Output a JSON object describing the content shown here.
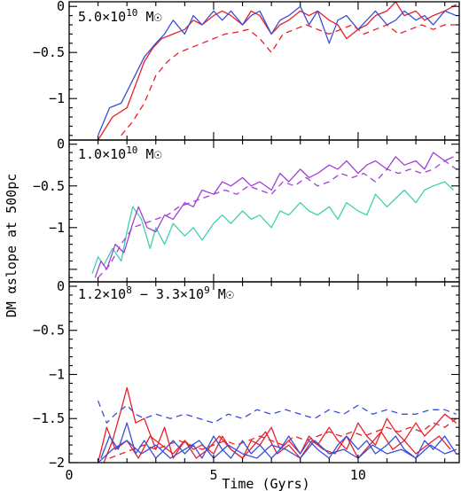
{
  "chart_data": {
    "type": "line",
    "xlabel": "Time (Gyrs)",
    "ylabel": "DM αslope at 500pc",
    "xlim": [
      0,
      13.5
    ],
    "x_ticks": [
      0,
      5,
      10
    ],
    "colors": {
      "red": "#e8202a",
      "blue": "#3a4fd8",
      "purple": "#a040d8",
      "teal": "#40d0b0"
    },
    "panels": [
      {
        "label_text": "5.0×10",
        "label_exp": "10",
        "label_unit": " M☉",
        "ylim": [
          -1.45,
          0.05
        ],
        "y_ticks": [
          0,
          -0.5,
          -1
        ],
        "y_tick_labels": [
          "0",
          "−0.5",
          "−1"
        ],
        "series": [
          {
            "color": "red",
            "dash": false,
            "x": [
              1.0,
              1.5,
              2.0,
              2.3,
              2.6,
              2.9,
              3.2,
              3.6,
              4.0,
              4.3,
              4.6,
              5.0,
              5.3,
              5.6,
              6.0,
              6.3,
              6.6,
              7.0,
              7.3,
              7.6,
              8.0,
              8.3,
              8.6,
              9.0,
              9.3,
              9.6,
              10.0,
              10.3,
              10.6,
              11.0,
              11.3,
              11.6,
              12.0,
              12.3,
              12.6,
              13.0,
              13.4
            ],
            "y": [
              -1.45,
              -1.2,
              -1.1,
              -0.85,
              -0.6,
              -0.45,
              -0.35,
              -0.3,
              -0.25,
              -0.15,
              -0.2,
              -0.1,
              -0.05,
              -0.1,
              -0.2,
              -0.05,
              -0.1,
              -0.3,
              -0.2,
              -0.15,
              -0.05,
              -0.1,
              -0.05,
              -0.15,
              -0.2,
              -0.35,
              -0.25,
              -0.2,
              -0.1,
              -0.05,
              0.05,
              -0.1,
              -0.05,
              -0.15,
              -0.1,
              -0.05,
              0.02
            ]
          },
          {
            "color": "blue",
            "dash": false,
            "x": [
              1.0,
              1.4,
              1.8,
              2.2,
              2.6,
              3.0,
              3.3,
              3.6,
              4.0,
              4.3,
              4.6,
              5.0,
              5.3,
              5.6,
              6.0,
              6.3,
              6.6,
              7.0,
              7.3,
              7.6,
              8.0,
              8.3,
              8.6,
              9.0,
              9.3,
              9.6,
              10.0,
              10.3,
              10.6,
              11.0,
              11.3,
              11.6,
              12.0,
              12.3,
              12.6,
              13.0,
              13.4
            ],
            "y": [
              -1.4,
              -1.1,
              -1.05,
              -0.8,
              -0.55,
              -0.4,
              -0.3,
              -0.15,
              -0.3,
              -0.1,
              -0.2,
              -0.05,
              -0.15,
              -0.05,
              -0.2,
              -0.1,
              -0.05,
              -0.3,
              -0.15,
              -0.1,
              0.0,
              -0.2,
              -0.05,
              -0.4,
              -0.15,
              -0.1,
              -0.25,
              -0.15,
              -0.05,
              -0.2,
              -0.15,
              -0.05,
              -0.15,
              -0.1,
              -0.2,
              -0.05,
              -0.1
            ]
          },
          {
            "color": "red",
            "dash": true,
            "x": [
              1.8,
              2.2,
              2.6,
              3.0,
              3.4,
              3.8,
              4.2,
              4.6,
              5.0,
              5.4,
              5.8,
              6.2,
              6.6,
              7.0,
              7.4,
              7.8,
              8.2,
              8.6,
              9.0,
              9.4,
              9.8,
              10.2,
              10.6,
              11.0,
              11.4,
              11.8,
              12.2,
              12.6,
              13.0,
              13.4
            ],
            "y": [
              -1.4,
              -1.25,
              -1.05,
              -0.75,
              -0.6,
              -0.5,
              -0.45,
              -0.4,
              -0.35,
              -0.3,
              -0.28,
              -0.25,
              -0.35,
              -0.5,
              -0.3,
              -0.25,
              -0.2,
              -0.25,
              -0.3,
              -0.25,
              -0.2,
              -0.3,
              -0.25,
              -0.2,
              -0.3,
              -0.25,
              -0.2,
              -0.25,
              -0.2,
              -0.2
            ]
          }
        ]
      },
      {
        "label_text": "1.0×10",
        "label_exp": "10",
        "label_unit": " M☉",
        "ylim": [
          -1.65,
          0.05
        ],
        "y_ticks": [
          0,
          -0.5,
          -1
        ],
        "y_tick_labels": [
          "0",
          "−0.5",
          "−1"
        ],
        "series": [
          {
            "color": "teal",
            "dash": false,
            "x": [
              0.8,
              1.0,
              1.2,
              1.5,
              1.8,
              2.0,
              2.2,
              2.5,
              2.8,
              3.0,
              3.3,
              3.6,
              4.0,
              4.3,
              4.6,
              5.0,
              5.3,
              5.6,
              6.0,
              6.3,
              6.6,
              7.0,
              7.3,
              7.6,
              8.0,
              8.3,
              8.6,
              9.0,
              9.3,
              9.6,
              10.0,
              10.3,
              10.6,
              11.0,
              11.3,
              11.6,
              12.0,
              12.3,
              12.6,
              13.0,
              13.3
            ],
            "y": [
              -1.55,
              -1.35,
              -1.45,
              -1.25,
              -1.4,
              -1.05,
              -0.75,
              -0.9,
              -1.25,
              -1.0,
              -1.2,
              -0.95,
              -1.1,
              -1.0,
              -1.15,
              -0.95,
              -0.85,
              -0.95,
              -0.8,
              -0.9,
              -0.85,
              -1.0,
              -0.8,
              -0.85,
              -0.7,
              -0.8,
              -0.85,
              -0.75,
              -0.9,
              -0.7,
              -0.8,
              -0.85,
              -0.6,
              -0.75,
              -0.65,
              -0.55,
              -0.7,
              -0.55,
              -0.5,
              -0.45,
              -0.55
            ]
          },
          {
            "color": "purple",
            "dash": false,
            "x": [
              0.9,
              1.1,
              1.3,
              1.6,
              1.9,
              2.2,
              2.4,
              2.7,
              3.0,
              3.3,
              3.6,
              4.0,
              4.3,
              4.6,
              5.0,
              5.3,
              5.6,
              6.0,
              6.3,
              6.6,
              7.0,
              7.3,
              7.6,
              8.0,
              8.3,
              8.6,
              9.0,
              9.3,
              9.6,
              10.0,
              10.3,
              10.6,
              11.0,
              11.3,
              11.6,
              12.0,
              12.3,
              12.6,
              13.0,
              13.3
            ],
            "y": [
              -1.6,
              -1.4,
              -1.5,
              -1.2,
              -1.3,
              -0.95,
              -0.75,
              -1.0,
              -1.05,
              -0.85,
              -0.9,
              -0.7,
              -0.75,
              -0.55,
              -0.6,
              -0.45,
              -0.5,
              -0.4,
              -0.5,
              -0.45,
              -0.55,
              -0.35,
              -0.45,
              -0.3,
              -0.4,
              -0.35,
              -0.25,
              -0.3,
              -0.2,
              -0.35,
              -0.25,
              -0.2,
              -0.3,
              -0.15,
              -0.25,
              -0.2,
              -0.3,
              -0.1,
              -0.2,
              -0.15
            ]
          },
          {
            "color": "purple",
            "dash": true,
            "x": [
              1.0,
              1.4,
              1.8,
              2.2,
              2.6,
              3.0,
              3.4,
              3.8,
              4.2,
              4.6,
              5.0,
              5.4,
              5.8,
              6.2,
              6.6,
              7.0,
              7.4,
              7.8,
              8.2,
              8.6,
              9.0,
              9.4,
              9.8,
              10.2,
              10.6,
              11.0,
              11.4,
              11.8,
              12.2,
              12.6,
              13.0,
              13.4
            ],
            "y": [
              -1.6,
              -1.45,
              -1.2,
              -1.0,
              -0.95,
              -0.9,
              -0.85,
              -0.75,
              -0.7,
              -0.65,
              -0.6,
              -0.55,
              -0.6,
              -0.5,
              -0.55,
              -0.6,
              -0.45,
              -0.5,
              -0.4,
              -0.5,
              -0.45,
              -0.35,
              -0.4,
              -0.35,
              -0.45,
              -0.3,
              -0.35,
              -0.3,
              -0.35,
              -0.3,
              -0.2,
              -0.3
            ]
          }
        ]
      },
      {
        "label_text": "1.2×10",
        "label_exp": "8",
        "label_mid": " − 3.3×10",
        "label_exp2": "9",
        "label_unit": " M☉",
        "ylim": [
          -2.0,
          0.05
        ],
        "y_ticks": [
          0,
          -0.5,
          -1,
          -1.5,
          -2
        ],
        "y_tick_labels": [
          "0",
          "−0.5",
          "−1",
          "−1.5",
          "−2"
        ],
        "series": [
          {
            "color": "red",
            "dash": false,
            "x": [
              1.2,
              1.5,
              1.8,
              2.0,
              2.3,
              2.6,
              3.0,
              3.3,
              3.6,
              4.0,
              4.3,
              4.6,
              5.0,
              5.3,
              5.6,
              6.0,
              6.3,
              6.6,
              7.0,
              7.3,
              7.6,
              8.0,
              8.3,
              8.6,
              9.0,
              9.3,
              9.6,
              10.0,
              10.3,
              10.6,
              11.0,
              11.3,
              11.6,
              12.0,
              12.3,
              12.6,
              13.0,
              13.4
            ],
            "y": [
              -2.0,
              -1.75,
              -1.4,
              -1.15,
              -1.55,
              -1.5,
              -1.85,
              -1.6,
              -1.95,
              -1.75,
              -1.85,
              -1.8,
              -1.9,
              -1.7,
              -1.85,
              -1.95,
              -1.75,
              -1.8,
              -1.6,
              -1.85,
              -1.75,
              -1.9,
              -1.7,
              -1.8,
              -1.6,
              -1.75,
              -1.85,
              -1.55,
              -1.7,
              -1.8,
              -1.5,
              -1.65,
              -1.75,
              -1.55,
              -1.7,
              -1.6,
              -1.45,
              -1.55
            ]
          },
          {
            "color": "red",
            "dash": false,
            "x": [
              1.0,
              1.3,
              1.6,
              2.0,
              2.4,
              2.8,
              3.2,
              3.6,
              4.0,
              4.4,
              4.8,
              5.2,
              5.6,
              6.0,
              6.4,
              6.8,
              7.2,
              7.6,
              8.0,
              8.4,
              8.8,
              9.2,
              9.6,
              10.0,
              10.4,
              10.8,
              11.2,
              11.6,
              12.0,
              12.4,
              12.8,
              13.2
            ],
            "y": [
              -2.0,
              -1.6,
              -1.85,
              -1.75,
              -1.95,
              -1.7,
              -1.8,
              -1.9,
              -1.75,
              -1.95,
              -1.85,
              -1.7,
              -1.85,
              -1.95,
              -1.8,
              -1.65,
              -1.9,
              -1.8,
              -1.95,
              -1.75,
              -1.85,
              -1.9,
              -1.7,
              -1.95,
              -1.8,
              -1.65,
              -1.85,
              -1.75,
              -1.9,
              -1.8,
              -1.7,
              -1.85
            ]
          },
          {
            "color": "red",
            "dash": true,
            "x": [
              1.4,
              1.8,
              2.2,
              2.6,
              3.0,
              3.4,
              3.8,
              4.2,
              4.6,
              5.0,
              5.4,
              5.8,
              6.2,
              6.6,
              7.0,
              7.4,
              7.8,
              8.2,
              8.6,
              9.0,
              9.4,
              9.8,
              10.2,
              10.6,
              11.0,
              11.4,
              11.8,
              12.2,
              12.6,
              13.0,
              13.4
            ],
            "y": [
              -1.95,
              -1.9,
              -1.85,
              -1.8,
              -1.85,
              -1.8,
              -1.75,
              -1.8,
              -1.85,
              -1.8,
              -1.75,
              -1.8,
              -1.75,
              -1.7,
              -1.75,
              -1.8,
              -1.7,
              -1.75,
              -1.7,
              -1.65,
              -1.7,
              -1.65,
              -1.7,
              -1.65,
              -1.6,
              -1.65,
              -1.6,
              -1.65,
              -1.55,
              -1.6,
              -1.5
            ]
          },
          {
            "color": "blue",
            "dash": false,
            "x": [
              1.1,
              1.4,
              1.7,
              2.0,
              2.3,
              2.6,
              3.0,
              3.3,
              3.6,
              4.0,
              4.3,
              4.6,
              5.0,
              5.3,
              5.6,
              6.0,
              6.3,
              6.6,
              7.0,
              7.3,
              7.6,
              8.0,
              8.3,
              8.6,
              9.0,
              9.3,
              9.6,
              10.0,
              10.3,
              10.6,
              11.0,
              11.3,
              11.6,
              12.0,
              12.3,
              12.6,
              13.0,
              13.4
            ],
            "y": [
              -1.95,
              -1.7,
              -1.85,
              -1.55,
              -1.9,
              -1.75,
              -1.95,
              -1.85,
              -1.75,
              -1.9,
              -1.8,
              -1.95,
              -1.7,
              -1.85,
              -1.95,
              -1.75,
              -1.9,
              -1.8,
              -1.95,
              -1.85,
              -1.7,
              -1.9,
              -1.75,
              -1.85,
              -1.95,
              -1.8,
              -1.7,
              -1.85,
              -1.75,
              -1.9,
              -1.8,
              -1.7,
              -1.85,
              -1.95,
              -1.75,
              -1.85,
              -1.7,
              -1.9
            ]
          },
          {
            "color": "blue",
            "dash": false,
            "x": [
              1.0,
              1.5,
              2.0,
              2.5,
              3.0,
              3.5,
              4.0,
              4.5,
              5.0,
              5.5,
              6.0,
              6.5,
              7.0,
              7.5,
              8.0,
              8.5,
              9.0,
              9.5,
              10.0,
              10.5,
              11.0,
              11.5,
              12.0,
              12.5,
              13.0,
              13.4
            ],
            "y": [
              -2.0,
              -1.85,
              -1.75,
              -1.9,
              -1.8,
              -1.95,
              -1.85,
              -1.75,
              -1.95,
              -1.8,
              -1.9,
              -1.95,
              -1.8,
              -1.85,
              -1.95,
              -1.75,
              -1.9,
              -1.85,
              -1.95,
              -1.8,
              -1.9,
              -1.85,
              -1.95,
              -1.8,
              -1.9,
              -1.85
            ]
          },
          {
            "color": "blue",
            "dash": true,
            "x": [
              1.0,
              1.3,
              1.6,
              2.0,
              2.3,
              2.6,
              3.0,
              3.5,
              4.0,
              4.5,
              5.0,
              5.5,
              6.0,
              6.5,
              7.0,
              7.5,
              8.0,
              8.5,
              9.0,
              9.5,
              10.0,
              10.5,
              11.0,
              11.5,
              12.0,
              12.5,
              13.0,
              13.4
            ],
            "y": [
              -1.3,
              -1.55,
              -1.45,
              -1.35,
              -1.45,
              -1.5,
              -1.45,
              -1.5,
              -1.45,
              -1.5,
              -1.55,
              -1.45,
              -1.5,
              -1.4,
              -1.45,
              -1.4,
              -1.45,
              -1.5,
              -1.4,
              -1.45,
              -1.35,
              -1.45,
              -1.4,
              -1.45,
              -1.45,
              -1.4,
              -1.4,
              -1.45
            ]
          }
        ]
      }
    ]
  }
}
